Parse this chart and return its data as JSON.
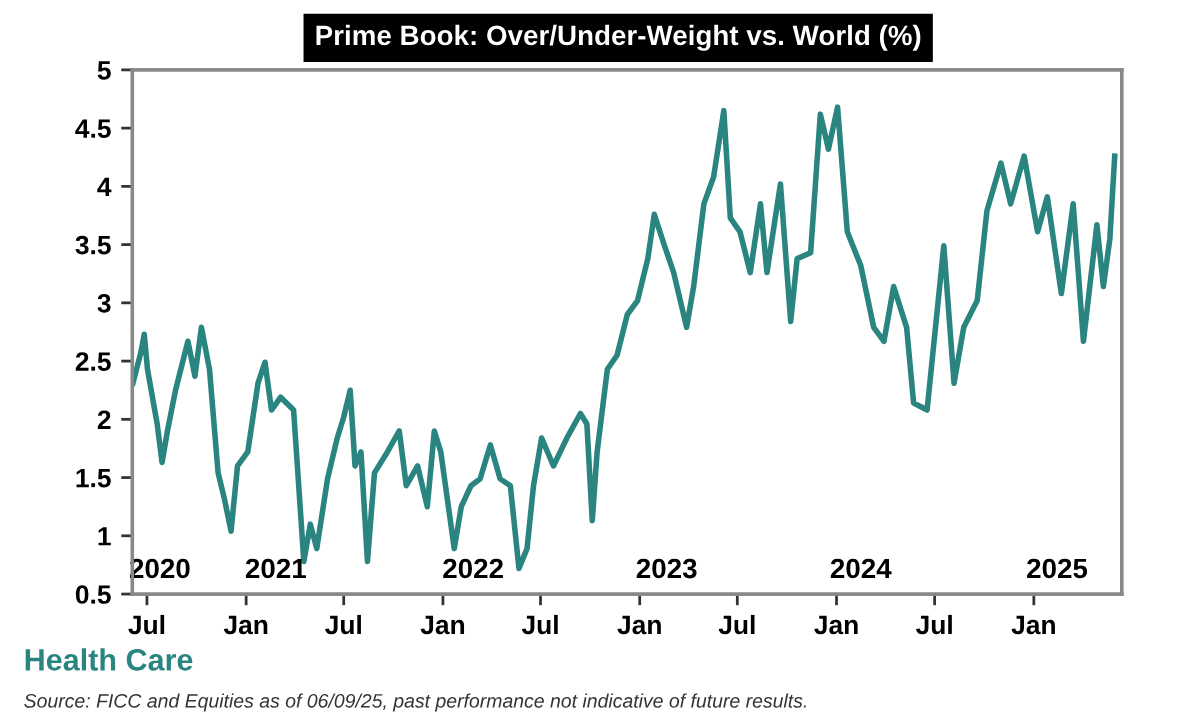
{
  "chart_data": {
    "type": "line",
    "title": "Prime Book: Over/Under-Weight vs. World (%)",
    "annotations": [
      "Health Care",
      "Source: FICC and Equities as of 06/09/25, past performance not indicative of future results."
    ],
    "xlim": [
      "2020-06-04",
      "2025-06-13"
    ],
    "ylim": [
      0.5,
      5
    ],
    "yticks": [
      0.5,
      1,
      1.5,
      2,
      2.5,
      3,
      3.5,
      4,
      4.5,
      5
    ],
    "xticks": [
      {
        "value": "2020-07-01",
        "label": "Jul"
      },
      {
        "value": "2021-01-01",
        "label": "Jan"
      },
      {
        "value": "2021-07-01",
        "label": "Jul"
      },
      {
        "value": "2022-01-01",
        "label": "Jan"
      },
      {
        "value": "2022-07-01",
        "label": "Jul"
      },
      {
        "value": "2023-01-01",
        "label": "Jan"
      },
      {
        "value": "2023-07-01",
        "label": "Jul"
      },
      {
        "value": "2024-01-01",
        "label": "Jan"
      },
      {
        "value": "2024-07-01",
        "label": "Jul"
      },
      {
        "value": "2025-01-01",
        "label": "Jan"
      }
    ],
    "x2lim": [
      "2020-06-04",
      "2025-06-13"
    ],
    "x2ticks": [
      {
        "value": "2020-07-25",
        "label": "2020"
      },
      {
        "value": "2021-02-25",
        "label": "2021"
      },
      {
        "value": "2022-02-26",
        "label": "2022"
      },
      {
        "value": "2023-02-20",
        "label": "2023"
      },
      {
        "value": "2024-02-15",
        "label": "2024"
      },
      {
        "value": "2025-02-13",
        "label": "2025"
      }
    ],
    "grid": false,
    "marker": "none",
    "line_style": "solid",
    "series": [
      {
        "color": "#2a8580",
        "x": [
          "2020-06-05",
          "2020-06-20",
          "2020-06-26",
          "2020-07-02",
          "2020-07-20",
          "2020-07-29",
          "2020-08-08",
          "2020-08-23",
          "2020-09-15",
          "2020-09-28",
          "2020-10-10",
          "2020-10-25",
          "2020-11-10",
          "2020-11-22",
          "2020-12-04",
          "2020-12-16",
          "2021-01-04",
          "2021-01-23",
          "2021-02-05",
          "2021-02-17",
          "2021-03-06",
          "2021-03-30",
          "2021-04-18",
          "2021-04-30",
          "2021-05-12",
          "2021-06-01",
          "2021-06-19",
          "2021-07-01",
          "2021-07-13",
          "2021-07-22",
          "2021-08-02",
          "2021-08-14",
          "2021-08-27",
          "2021-09-20",
          "2021-10-12",
          "2021-10-25",
          "2021-11-15",
          "2021-12-03",
          "2021-12-16",
          "2021-12-28",
          "2022-01-22",
          "2022-02-04",
          "2022-02-22",
          "2022-03-11",
          "2022-03-30",
          "2022-04-17",
          "2022-05-06",
          "2022-05-22",
          "2022-06-06",
          "2022-06-18",
          "2022-07-03",
          "2022-07-25",
          "2022-08-19",
          "2022-09-13",
          "2022-09-25",
          "2022-10-05",
          "2022-10-14",
          "2022-11-02",
          "2022-11-20",
          "2022-12-09",
          "2022-12-28",
          "2023-01-16",
          "2023-01-28",
          "2023-02-16",
          "2023-03-05",
          "2023-03-29",
          "2023-04-11",
          "2023-04-30",
          "2023-05-18",
          "2023-06-06",
          "2023-06-18",
          "2023-07-06",
          "2023-07-25",
          "2023-08-13",
          "2023-08-25",
          "2023-09-19",
          "2023-10-08",
          "2023-10-20",
          "2023-11-14",
          "2023-12-02",
          "2023-12-17",
          "2024-01-03",
          "2024-01-21",
          "2024-02-15",
          "2024-03-10",
          "2024-03-29",
          "2024-04-16",
          "2024-05-10",
          "2024-05-23",
          "2024-06-17",
          "2024-07-18",
          "2024-08-06",
          "2024-08-24",
          "2024-09-18",
          "2024-10-06",
          "2024-11-01",
          "2024-11-19",
          "2024-12-14",
          "2025-01-08",
          "2025-01-26",
          "2025-02-21",
          "2025-03-15",
          "2025-04-03",
          "2025-04-28",
          "2025-05-10",
          "2025-05-22",
          "2025-05-31"
        ],
        "values": [
          2.31,
          2.58,
          2.73,
          2.43,
          1.96,
          1.63,
          1.9,
          2.25,
          2.67,
          2.37,
          2.79,
          2.43,
          1.54,
          1.31,
          1.04,
          1.6,
          1.72,
          2.31,
          2.49,
          2.08,
          2.19,
          2.08,
          0.78,
          1.1,
          0.89,
          1.49,
          1.84,
          2.02,
          2.25,
          1.6,
          1.72,
          0.78,
          1.54,
          1.72,
          1.9,
          1.43,
          1.6,
          1.25,
          1.9,
          1.72,
          0.89,
          1.25,
          1.43,
          1.49,
          1.78,
          1.49,
          1.43,
          0.72,
          0.89,
          1.43,
          1.84,
          1.6,
          1.84,
          2.05,
          1.96,
          1.13,
          1.72,
          2.43,
          2.55,
          2.9,
          3.02,
          3.38,
          3.76,
          3.49,
          3.26,
          2.79,
          3.14,
          3.85,
          4.08,
          4.65,
          3.73,
          3.61,
          3.26,
          3.85,
          3.26,
          4.02,
          2.84,
          3.38,
          3.43,
          4.62,
          4.32,
          4.68,
          3.61,
          3.32,
          2.79,
          2.67,
          3.14,
          2.79,
          2.14,
          2.08,
          3.49,
          2.31,
          2.79,
          3.02,
          3.79,
          4.2,
          3.85,
          4.26,
          3.61,
          3.91,
          3.08,
          3.85,
          2.67,
          3.67,
          3.14,
          3.55,
          4.26
        ]
      }
    ]
  }
}
